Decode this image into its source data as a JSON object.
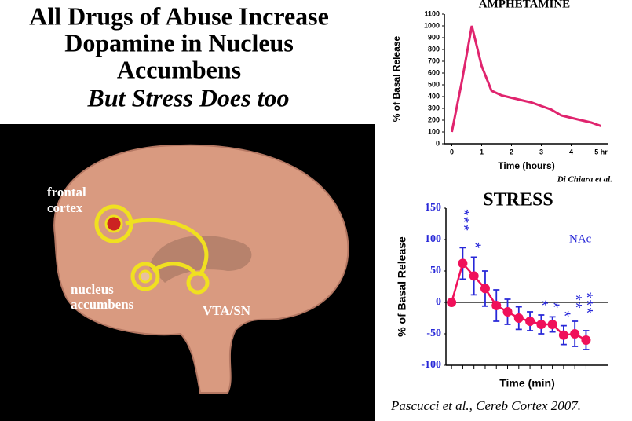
{
  "slide": {
    "title": [
      "All Drugs of Abuse Increase",
      "Dopamine in Nucleus",
      "Accumbens"
    ],
    "subtitle": "But Stress Does too"
  },
  "brain": {
    "labels": [
      "frontal",
      "cortex",
      "nucleus",
      "accumbens",
      "VTA/SN"
    ]
  },
  "chart_data": [
    {
      "type": "line",
      "title": "AMPHETAMINE",
      "y_label": "% of Basal Release",
      "x_label": "Time (hours)",
      "source": "Di Chiara et al.",
      "x": [
        0,
        0.33,
        0.67,
        1,
        1.33,
        1.67,
        2,
        2.33,
        2.67,
        3,
        3.33,
        3.67,
        4,
        4.33,
        4.67,
        5
      ],
      "values": [
        100,
        520,
        1000,
        660,
        450,
        410,
        390,
        370,
        350,
        320,
        290,
        240,
        220,
        200,
        180,
        150
      ],
      "color": "#e0246e",
      "xlim": [
        -0.25,
        5.25
      ],
      "xticks": [
        0,
        1,
        2,
        3,
        4,
        {
          "value": 5,
          "label": "5 hr"
        }
      ],
      "ylim": [
        0,
        1100
      ],
      "yticks": [
        0,
        100,
        200,
        300,
        400,
        500,
        600,
        700,
        800,
        900,
        1000,
        1100
      ]
    },
    {
      "type": "line",
      "title": "STRESS",
      "y_label": "% of Basal Release",
      "x_label": "Time (min)",
      "annotation": "NAc",
      "reference": "Pascucci et al., Cereb Cortex 2007.",
      "x": [
        0,
        1,
        2,
        3,
        4,
        5,
        6,
        7,
        8,
        9,
        10,
        11,
        12
      ],
      "values": [
        0,
        62,
        42,
        22,
        -5,
        -15,
        -25,
        -30,
        -35,
        -35,
        -52,
        -50,
        -60
      ],
      "errors": [
        0,
        25,
        30,
        28,
        25,
        20,
        18,
        15,
        15,
        12,
        15,
        20,
        15
      ],
      "significance": [
        null,
        "***",
        "*",
        null,
        null,
        null,
        null,
        null,
        "*",
        "*",
        "*",
        "**",
        "***"
      ],
      "color": "#f0105a",
      "error_color": "#2828d8",
      "markers": true,
      "zero_line": true,
      "xlim": [
        -0.5,
        14
      ],
      "ylim": [
        -100,
        150
      ],
      "yticks": [
        -100,
        -50,
        0,
        50,
        100,
        150
      ]
    }
  ]
}
